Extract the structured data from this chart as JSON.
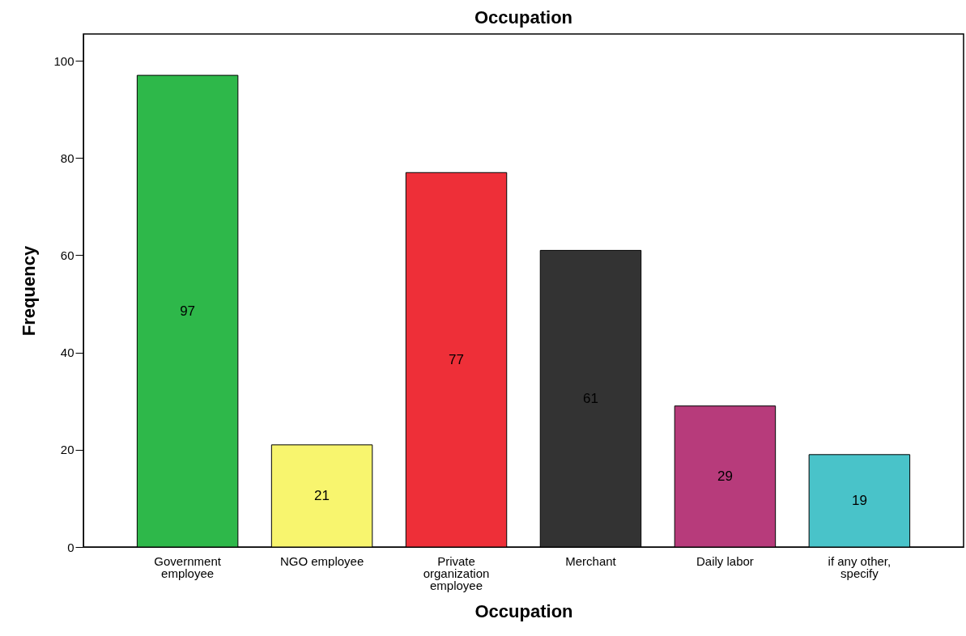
{
  "chart_data": {
    "type": "bar",
    "title": "Occupation",
    "xlabel": "Occupation",
    "ylabel": "Frequency",
    "categories": [
      "Government employee",
      "NGO employee",
      "Private organization employee",
      "Merchant",
      "Daily labor",
      "if any other, specify"
    ],
    "values": [
      97,
      21,
      77,
      61,
      29,
      19
    ],
    "colors": [
      "#2eb84a",
      "#f8f56e",
      "#ee2f38",
      "#333333",
      "#b73b7b",
      "#49c3c9"
    ],
    "ylim": [
      0,
      105.5
    ],
    "yticks": [
      0,
      20,
      40,
      60,
      80,
      100
    ],
    "grid": false,
    "data_labels": true
  }
}
